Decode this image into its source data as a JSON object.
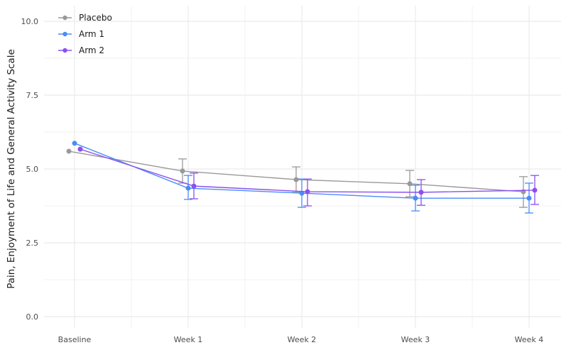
{
  "chart_data": {
    "type": "line",
    "title": "",
    "xlabel": "",
    "ylabel": "Pain, Enjoyment of Life and General Activity Scale",
    "ylim": [
      0,
      10
    ],
    "yticks": [
      0.0,
      2.5,
      5.0,
      7.5,
      10.0
    ],
    "ytick_labels": [
      "0.0",
      "2.5",
      "5.0",
      "7.5",
      "10.0"
    ],
    "categories": [
      "Baseline",
      "Week 1",
      "Week 2",
      "Week 3",
      "Week 4"
    ],
    "grid": true,
    "legend_position": "top-left",
    "error_bars": true,
    "series": [
      {
        "name": "Placebo",
        "color": "#999999",
        "values": [
          5.6,
          4.93,
          4.64,
          4.5,
          4.23
        ],
        "upper": [
          null,
          5.34,
          5.07,
          4.95,
          4.74
        ],
        "lower": [
          null,
          4.52,
          4.21,
          4.06,
          3.7
        ]
      },
      {
        "name": "Arm 1",
        "color": "#4a8cf7",
        "values": [
          5.87,
          4.35,
          4.18,
          4.01,
          4.01
        ],
        "upper": [
          null,
          4.78,
          4.66,
          4.45,
          4.52
        ],
        "lower": [
          null,
          3.97,
          3.7,
          3.58,
          3.51
        ]
      },
      {
        "name": "Arm 2",
        "color": "#8b4ff0",
        "values": [
          5.67,
          4.42,
          4.23,
          4.21,
          4.28
        ],
        "upper": [
          null,
          4.86,
          4.66,
          4.64,
          4.78
        ],
        "lower": [
          null,
          3.99,
          3.75,
          3.77,
          3.8
        ]
      }
    ]
  },
  "legend": {
    "items": [
      "Placebo",
      "Arm 1",
      "Arm 2"
    ]
  }
}
